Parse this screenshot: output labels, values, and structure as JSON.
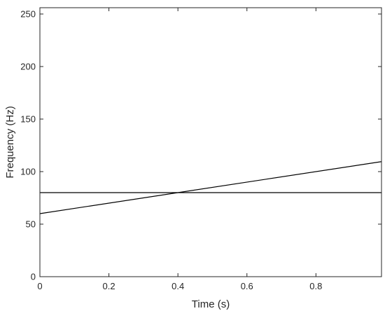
{
  "chart_data": {
    "type": "line",
    "xlabel": "Time (s)",
    "ylabel": "Frequency (Hz)",
    "xlim": [
      0,
      0.99
    ],
    "ylim": [
      0,
      256
    ],
    "xticks": [
      0,
      0.2,
      0.4,
      0.6,
      0.8
    ],
    "xtick_labels": [
      "0",
      "0.2",
      "0.4",
      "0.6",
      "0.8"
    ],
    "yticks": [
      0,
      50,
      100,
      150,
      200,
      250
    ],
    "ytick_labels": [
      "0",
      "50",
      "100",
      "150",
      "200",
      "250"
    ],
    "grid": false,
    "line_color": "#000000",
    "series": [
      {
        "x": [
          0,
          0.99
        ],
        "y": [
          80,
          80
        ]
      },
      {
        "x": [
          0,
          0.99
        ],
        "y": [
          60,
          109.5
        ]
      }
    ]
  }
}
